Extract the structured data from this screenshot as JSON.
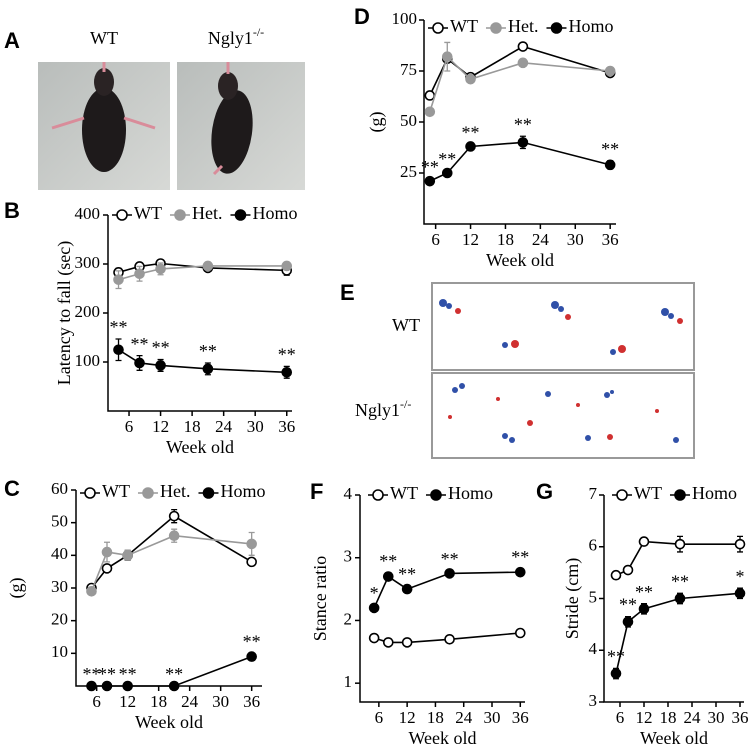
{
  "panel_a": {
    "label": "A",
    "captions": [
      "WT",
      {
        "text": "Ngly1",
        "sup": "-/-"
      }
    ]
  },
  "panel_e": {
    "label": "E",
    "rows": [
      "WT",
      {
        "text": "Ngly1",
        "sup": "-/-"
      }
    ]
  },
  "chart_data": [
    {
      "type": "line",
      "label": "B",
      "ylabel": "Latency to fall (sec)",
      "xlabel": "Week old",
      "x": [
        4,
        8,
        12,
        21,
        36
      ],
      "xlim": [
        2,
        37
      ],
      "xticks": [
        6,
        12,
        18,
        24,
        30,
        36
      ],
      "ylim": [
        0,
        400
      ],
      "yticks": [
        100,
        200,
        300,
        400
      ],
      "series": [
        {
          "name": "WT",
          "color": "#000000",
          "marker": "open",
          "values": [
            283,
            295,
            301,
            292,
            287
          ],
          "errors": [
            8,
            6,
            5,
            4,
            10
          ]
        },
        {
          "name": "Het.",
          "color": "#999999",
          "marker": "filled",
          "values": [
            268,
            280,
            290,
            296,
            296
          ],
          "errors": [
            18,
            15,
            12,
            5,
            6
          ]
        },
        {
          "name": "Homo",
          "color": "#000000",
          "marker": "filled",
          "values": [
            125,
            98,
            93,
            86,
            79
          ],
          "errors": [
            22,
            15,
            12,
            12,
            12
          ],
          "significance": [
            "**",
            "**",
            "**",
            "**",
            "**"
          ]
        }
      ]
    },
    {
      "type": "line",
      "label": "C",
      "ylabel": "(g)",
      "xlabel": "Week old",
      "x": [
        5,
        8,
        12,
        21,
        36
      ],
      "xlim": [
        2,
        38
      ],
      "xticks": [
        6,
        12,
        18,
        24,
        30,
        36
      ],
      "ylim": [
        0,
        60
      ],
      "yticks": [
        10,
        20,
        30,
        40,
        50,
        60
      ],
      "series": [
        {
          "name": "WT",
          "color": "#000000",
          "marker": "open",
          "values": [
            30,
            36,
            40,
            52,
            38
          ],
          "errors": [
            1,
            1,
            1.5,
            2,
            1
          ]
        },
        {
          "name": "Het.",
          "color": "#999999",
          "marker": "filled",
          "values": [
            29,
            41,
            40,
            46,
            43.5
          ],
          "errors": [
            1,
            3,
            1.5,
            2,
            3.5
          ]
        },
        {
          "name": "Homo",
          "color": "#000000",
          "marker": "filled",
          "values": [
            0,
            0,
            0,
            0,
            9
          ],
          "errors": [
            0,
            0,
            0,
            0,
            1
          ],
          "significance": [
            "**",
            "**",
            "**",
            "**",
            "**"
          ]
        }
      ]
    },
    {
      "type": "line",
      "label": "D",
      "ylabel": "(g)",
      "xlabel": "Week old",
      "x": [
        5,
        8,
        12,
        21,
        36
      ],
      "xlim": [
        4,
        37
      ],
      "xticks": [
        6,
        12,
        18,
        24,
        30,
        36
      ],
      "ylim": [
        0,
        100
      ],
      "yticks": [
        25,
        50,
        75,
        100
      ],
      "series": [
        {
          "name": "WT",
          "color": "#000000",
          "marker": "open",
          "values": [
            63,
            81,
            72,
            87,
            74
          ],
          "errors": [
            1,
            1,
            1,
            1,
            1
          ]
        },
        {
          "name": "Het.",
          "color": "#999999",
          "marker": "filled",
          "values": [
            55,
            82,
            71,
            79,
            75
          ],
          "errors": [
            1,
            7,
            1,
            1,
            1
          ]
        },
        {
          "name": "Homo",
          "color": "#000000",
          "marker": "filled",
          "values": [
            21,
            25,
            38,
            40,
            29
          ],
          "errors": [
            1,
            1,
            1,
            3,
            2
          ],
          "significance": [
            "**",
            "**",
            "**",
            "**",
            "**"
          ]
        }
      ]
    },
    {
      "type": "line",
      "label": "F",
      "ylabel": "Stance ratio",
      "xlabel": "Week old",
      "x": [
        5,
        8,
        12,
        21,
        36
      ],
      "xlim": [
        2,
        37
      ],
      "xticks": [
        6,
        12,
        18,
        24,
        30,
        36
      ],
      "ylim": [
        0.7,
        4
      ],
      "yticks": [
        1,
        2,
        3,
        4
      ],
      "series": [
        {
          "name": "WT",
          "color": "#000000",
          "marker": "open",
          "values": [
            1.72,
            1.65,
            1.65,
            1.7,
            1.8
          ],
          "errors": [
            0.03,
            0.03,
            0.03,
            0.03,
            0.05
          ]
        },
        {
          "name": "Homo",
          "color": "#000000",
          "marker": "filled",
          "values": [
            2.2,
            2.7,
            2.5,
            2.75,
            2.77
          ],
          "errors": [
            0.05,
            0.06,
            0.05,
            0.04,
            0.05
          ],
          "significance": [
            "*",
            "**",
            "**",
            "**",
            "**"
          ]
        }
      ]
    },
    {
      "type": "line",
      "label": "G",
      "ylabel": "Stride (cm)",
      "xlabel": "Week old",
      "x": [
        5,
        8,
        12,
        21,
        36
      ],
      "xlim": [
        2,
        37
      ],
      "xticks": [
        6,
        12,
        18,
        24,
        30,
        36
      ],
      "ylim": [
        3,
        7
      ],
      "yticks": [
        3,
        4,
        5,
        6,
        7
      ],
      "series": [
        {
          "name": "WT",
          "color": "#000000",
          "marker": "open",
          "values": [
            5.45,
            5.55,
            6.1,
            6.05,
            6.05
          ],
          "errors": [
            0.05,
            0.05,
            0.05,
            0.15,
            0.15
          ]
        },
        {
          "name": "Homo",
          "color": "#000000",
          "marker": "filled",
          "values": [
            3.55,
            4.55,
            4.8,
            5.0,
            5.1
          ],
          "errors": [
            0.1,
            0.1,
            0.1,
            0.1,
            0.1
          ],
          "significance": [
            "**",
            "**",
            "**",
            "**",
            "*"
          ]
        }
      ]
    }
  ]
}
